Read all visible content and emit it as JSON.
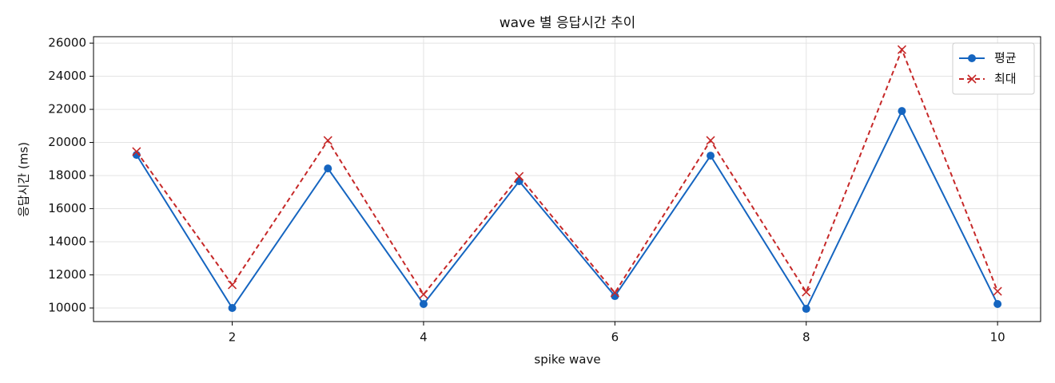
{
  "chart_data": {
    "type": "line",
    "title": "wave 별 응답시간 추이",
    "x_label": "spike wave",
    "y_label": "응답시간 (ms)",
    "x": [
      1,
      2,
      3,
      4,
      5,
      6,
      7,
      8,
      9,
      10
    ],
    "series": [
      {
        "name": "평균",
        "color": "#1565c0",
        "marker": "circle",
        "dash": false,
        "values": [
          19250,
          10000,
          18430,
          10240,
          17660,
          10720,
          19200,
          9950,
          21900,
          10240
        ]
      },
      {
        "name": "최대",
        "color": "#c62828",
        "marker": "x",
        "dash": true,
        "values": [
          19450,
          11400,
          20120,
          10820,
          17950,
          10920,
          20120,
          10960,
          25610,
          11010
        ]
      }
    ],
    "xlim": [
      0.55,
      10.45
    ],
    "xticks": [
      2,
      4,
      6,
      8,
      10
    ],
    "ylim": [
      9180,
      26390
    ],
    "yticks": [
      10000,
      12000,
      14000,
      16000,
      18000,
      20000,
      22000,
      24000,
      26000
    ],
    "grid": true,
    "legend": "upper right"
  }
}
